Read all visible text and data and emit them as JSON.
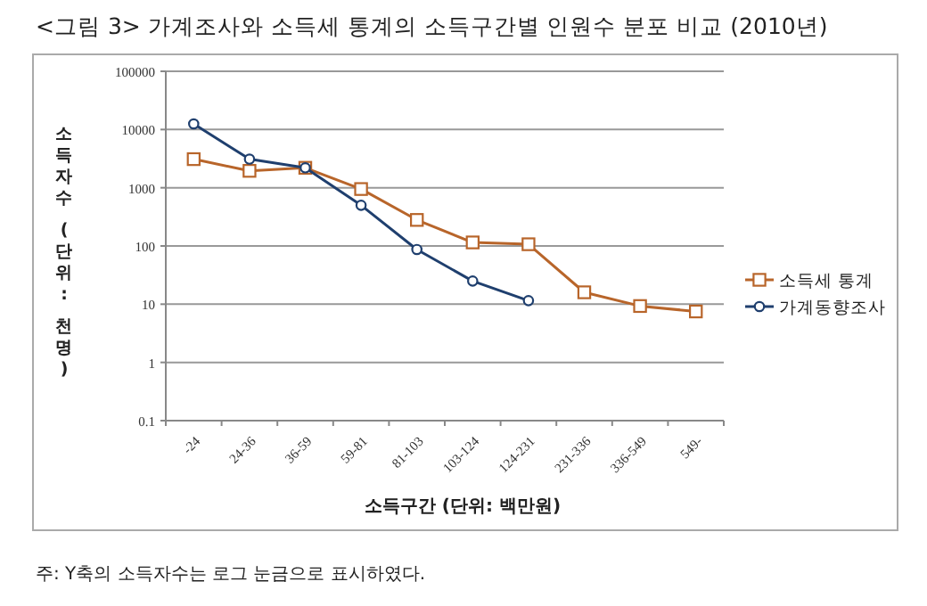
{
  "chart_data": {
    "type": "line",
    "title": "<그림 3> 가계조사와 소득세 통계의 소득구간별 인원수 분포 비교 (2010년)",
    "xlabel": "소득구간 (단위: 백만원)",
    "ylabel": "소득자수 (단위: 천명)",
    "annotations": [
      "주: Y축의 소득자수는 로그 눈금으로 표시하였다."
    ],
    "categories": [
      "-24",
      "24-36",
      "36-59",
      "59-81",
      "81-103",
      "103-124",
      "124-231",
      "231-336",
      "336-549",
      "549-"
    ],
    "series": [
      {
        "name": "소득세 통계",
        "color": "#b8652a",
        "marker": "square",
        "values": [
          3100,
          1950,
          2200,
          950,
          280,
          115,
          107,
          16,
          9.3,
          7.5
        ]
      },
      {
        "name": "가계동향조사",
        "color": "#1f3f6e",
        "marker": "circle",
        "values": [
          12500,
          3100,
          2200,
          500,
          87,
          25,
          11.5,
          null,
          null,
          null
        ]
      }
    ],
    "log": "y",
    "ylim": [
      0.1,
      100000
    ],
    "yticks": [
      0.1,
      1,
      10,
      100,
      1000,
      10000,
      100000
    ],
    "grid": "y",
    "legend": "right",
    "line_style": "solid"
  }
}
